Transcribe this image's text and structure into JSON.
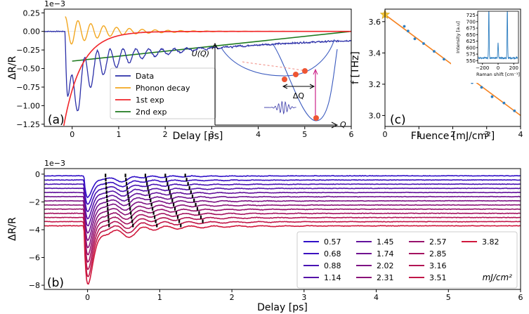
{
  "colors": {
    "data": "#2b2fa8",
    "phonon": "#f2a720",
    "exp1": "#f0252a",
    "exp2": "#1e7a1e",
    "fit_c": "#f58220",
    "points_c": "#2f7fc1",
    "star": "#f4c430",
    "inset_line": "#2f7fc1",
    "potential": "#3b5bbf",
    "bump": "#cc2288"
  },
  "chart_data": [
    {
      "type": "line",
      "panel_label": "(a)",
      "xlabel": "Delay [ps]",
      "ylabel": "ΔR/R",
      "multiplier": "1e−3",
      "xlim": [
        -0.6,
        6.0
      ],
      "ylim": [
        -1.28,
        0.3
      ],
      "x_ticks": [
        "0",
        "1",
        "2",
        "3",
        "4",
        "5",
        "6"
      ],
      "y_ticks": [
        "0.25",
        "0.00",
        "−0.25",
        "−0.50",
        "−0.75",
        "−1.00",
        "−1.25"
      ],
      "legend": {
        "position": "center",
        "entries": [
          "Data",
          "Phonon decay",
          "1st exp",
          "2nd exp"
        ]
      },
      "series": [
        {
          "name": "Data",
          "model": {
            "t0": -0.15,
            "a1": -0.92,
            "tau1": 0.3,
            "a2": -0.42,
            "tau2": 5.0,
            "aph": 0.42,
            "tauph": 0.9,
            "freq_thz": 3.62
          }
        },
        {
          "name": "Phonon decay",
          "model": {
            "t0": -0.15,
            "aph": 0.2,
            "tauph": 0.85,
            "freq_thz": 3.62
          }
        },
        {
          "name": "1st exp",
          "model": {
            "t0": -0.18,
            "amp": -1.27,
            "tau": 0.38
          }
        },
        {
          "name": "2nd exp",
          "x": [
            0,
            6
          ],
          "y": [
            -0.4,
            0.0
          ]
        }
      ],
      "inset": {
        "ylabel": "U(Q)",
        "xlabel": "Q",
        "delta_label": "ΔQ"
      }
    },
    {
      "type": "scatter",
      "panel_label": "(c)",
      "xlabel": "Fluence [mJ/cm²]",
      "ylabel": "f [THz]",
      "xlim": [
        0,
        4
      ],
      "ylim": [
        2.93,
        3.68
      ],
      "x_ticks": [
        "0",
        "1",
        "2",
        "3",
        "4"
      ],
      "y_ticks": [
        "3.6",
        "3.4",
        "3.2",
        "3.0"
      ],
      "points": {
        "x": [
          0.57,
          0.68,
          0.88,
          1.14,
          1.45,
          1.74,
          2.02,
          2.31,
          2.57,
          2.85,
          3.16,
          3.51,
          3.82
        ],
        "y": [
          3.57,
          3.54,
          3.49,
          3.46,
          3.41,
          3.36,
          3.31,
          3.24,
          3.21,
          3.18,
          3.12,
          3.08,
          3.03
        ]
      },
      "fit_line": {
        "x": [
          0,
          4
        ],
        "y": [
          3.645,
          3.0
        ]
      },
      "star": {
        "x": 0,
        "y": 3.645
      },
      "inset": {
        "xlabel": "Raman shift [cm⁻¹]",
        "ylabel": "Intensity [a.u]",
        "xlim": [
          -260,
          260
        ],
        "ylim": [
          540,
          740
        ],
        "x_ticks": [
          "−200",
          "0",
          "200"
        ],
        "y_ticks": [
          "725",
          "700",
          "675",
          "650",
          "625",
          "600",
          "575",
          "550"
        ]
      }
    },
    {
      "type": "line",
      "panel_label": "(b)",
      "xlabel": "Delay [ps]",
      "ylabel": "ΔR/R",
      "multiplier": "1e−3",
      "xlim": [
        -0.6,
        6.0
      ],
      "ylim": [
        -8.3,
        0.4
      ],
      "x_ticks": [
        "0",
        "1",
        "2",
        "3",
        "4",
        "5",
        "6"
      ],
      "y_ticks": [
        "0",
        "−2",
        "−4",
        "−6",
        "−8"
      ],
      "legend_unit": "mJ/cm²",
      "series": [
        {
          "name": "0.57",
          "color": "#3010c8",
          "offset": -0.12,
          "amp": 3.0
        },
        {
          "name": "0.68",
          "color": "#3b10c0",
          "offset": -0.42,
          "amp": 3.4
        },
        {
          "name": "0.88",
          "color": "#4812b4",
          "offset": -0.72,
          "amp": 3.8
        },
        {
          "name": "1.14",
          "color": "#5512a8",
          "offset": -1.02,
          "amp": 4.2
        },
        {
          "name": "1.45",
          "color": "#62129c",
          "offset": -1.32,
          "amp": 4.6
        },
        {
          "name": "1.74",
          "color": "#701290",
          "offset": -1.62,
          "amp": 5.0
        },
        {
          "name": "2.02",
          "color": "#7d1284",
          "offset": -1.92,
          "amp": 5.4
        },
        {
          "name": "2.31",
          "color": "#8a1278",
          "offset": -2.22,
          "amp": 5.8
        },
        {
          "name": "2.57",
          "color": "#97126c",
          "offset": -2.52,
          "amp": 6.2
        },
        {
          "name": "2.85",
          "color": "#a41260",
          "offset": -2.82,
          "amp": 6.6
        },
        {
          "name": "3.16",
          "color": "#b21454",
          "offset": -3.12,
          "amp": 7.0
        },
        {
          "name": "3.51",
          "color": "#c01648",
          "offset": -3.42,
          "amp": 7.4
        },
        {
          "name": "3.82",
          "color": "#d0183c",
          "offset": -3.72,
          "amp": 7.8
        }
      ]
    }
  ]
}
